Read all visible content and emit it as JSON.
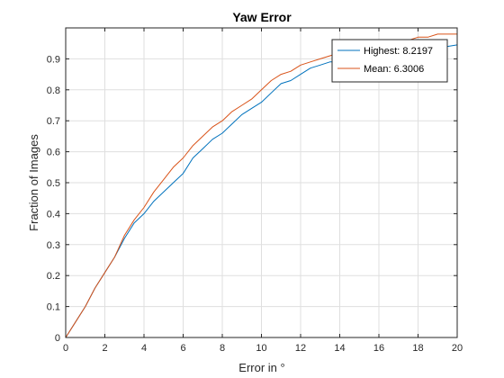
{
  "chart_data": {
    "type": "line",
    "title": "Yaw Error",
    "xlabel": "Error in °",
    "ylabel": "Fraction of Images",
    "xlim": [
      0,
      20
    ],
    "ylim": [
      0,
      1
    ],
    "x_ticks": [
      0,
      2,
      4,
      6,
      8,
      10,
      12,
      14,
      16,
      18,
      20
    ],
    "y_ticks": [
      0,
      0.1,
      0.2,
      0.3,
      0.4,
      0.5,
      0.6,
      0.7,
      0.8,
      0.9
    ],
    "x_tick_labels": [
      "0",
      "2",
      "4",
      "6",
      "8",
      "10",
      "12",
      "14",
      "16",
      "18",
      "20"
    ],
    "y_tick_labels": [
      "0",
      "0.1",
      "0.2",
      "0.3",
      "0.4",
      "0.5",
      "0.6",
      "0.7",
      "0.8",
      "0.9"
    ],
    "grid": true,
    "legend_position": "top-right",
    "series": [
      {
        "name": "Highest: 8.2197",
        "color": "#0072BD",
        "x": [
          0,
          0.5,
          1,
          1.5,
          2,
          2.5,
          3,
          3.5,
          4,
          4.5,
          5,
          5.5,
          6,
          6.5,
          7,
          7.5,
          8,
          8.5,
          9,
          9.5,
          10,
          10.5,
          11,
          11.5,
          12,
          12.5,
          13,
          13.5,
          14,
          14.5,
          15,
          15.5,
          16,
          16.5,
          17,
          17.5,
          18,
          18.5,
          19,
          19.5,
          20
        ],
        "y": [
          0,
          0.05,
          0.1,
          0.16,
          0.21,
          0.26,
          0.32,
          0.37,
          0.4,
          0.44,
          0.47,
          0.5,
          0.53,
          0.58,
          0.61,
          0.64,
          0.66,
          0.69,
          0.72,
          0.74,
          0.76,
          0.79,
          0.82,
          0.83,
          0.85,
          0.87,
          0.88,
          0.89,
          0.89,
          0.9,
          0.91,
          0.91,
          0.92,
          0.92,
          0.93,
          0.93,
          0.93,
          0.94,
          0.94,
          0.94,
          0.945
        ]
      },
      {
        "name": "Mean: 6.3006",
        "color": "#D95319",
        "x": [
          0,
          0.5,
          1,
          1.5,
          2,
          2.5,
          3,
          3.5,
          4,
          4.5,
          5,
          5.5,
          6,
          6.5,
          7,
          7.5,
          8,
          8.5,
          9,
          9.5,
          10,
          10.5,
          11,
          11.5,
          12,
          12.5,
          13,
          13.5,
          14,
          14.5,
          15,
          15.5,
          16,
          16.5,
          17,
          17.5,
          18,
          18.5,
          19,
          19.5,
          20
        ],
        "y": [
          0,
          0.05,
          0.1,
          0.16,
          0.21,
          0.26,
          0.33,
          0.38,
          0.42,
          0.47,
          0.51,
          0.55,
          0.58,
          0.62,
          0.65,
          0.68,
          0.7,
          0.73,
          0.75,
          0.77,
          0.8,
          0.83,
          0.85,
          0.86,
          0.88,
          0.89,
          0.9,
          0.91,
          0.92,
          0.93,
          0.94,
          0.94,
          0.95,
          0.95,
          0.96,
          0.96,
          0.97,
          0.97,
          0.98,
          0.98,
          0.98
        ]
      }
    ]
  }
}
